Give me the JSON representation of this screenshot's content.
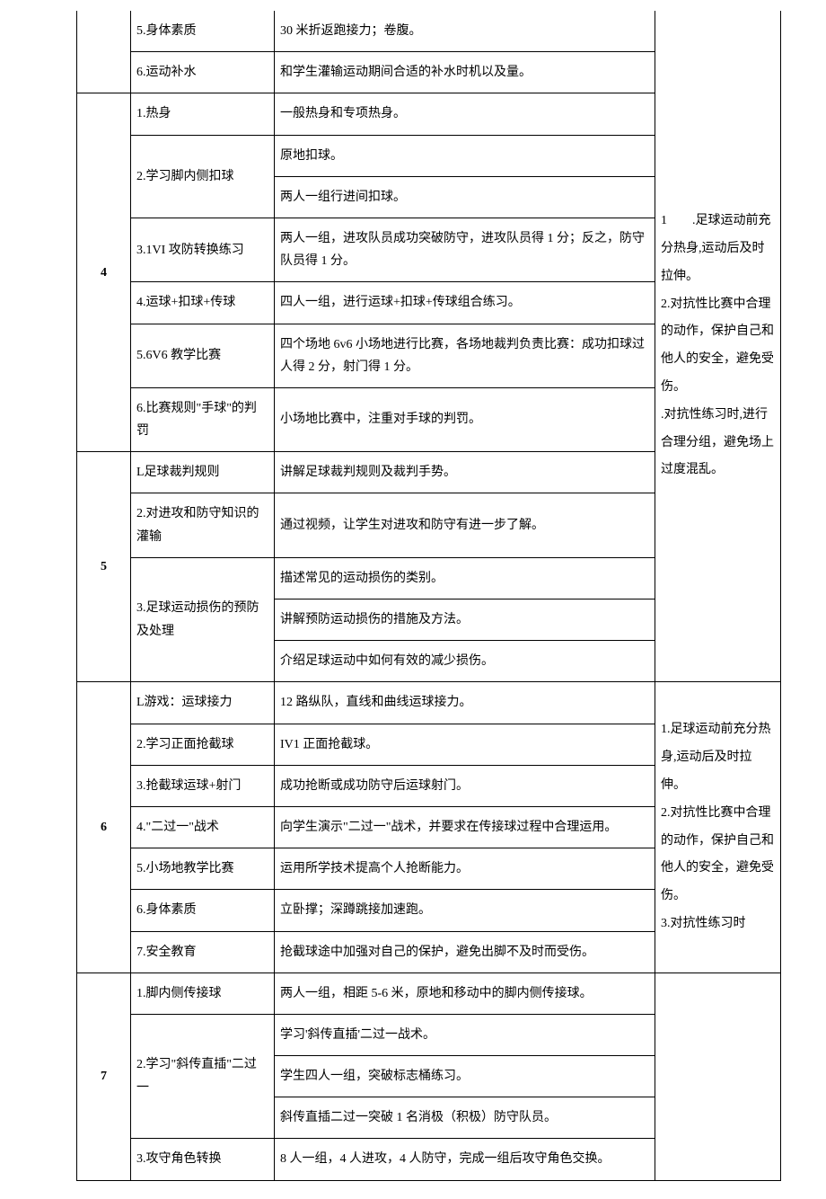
{
  "sections": [
    {
      "num": "",
      "rows": [
        {
          "topic": "5.身体素质",
          "desc": [
            "30 米折返跑接力；卷腹。"
          ]
        },
        {
          "topic": "6.运动补水",
          "desc": [
            "和学生灌输运动期间合适的补水时机以及量。"
          ]
        }
      ]
    },
    {
      "num": "4",
      "rows": [
        {
          "topic": "1.热身",
          "desc": [
            "一般热身和专项热身。"
          ]
        },
        {
          "topic": "2.学习脚内侧扣球",
          "desc": [
            "原地扣球。",
            "两人一组行进间扣球。"
          ]
        },
        {
          "topic": "3.1VI 攻防转换练习",
          "desc": [
            "两人一组，进攻队员成功突破防守，进攻队员得 1 分；反之，防守队员得 1 分。"
          ]
        },
        {
          "topic": "4.运球+扣球+传球",
          "desc": [
            "四人一组，进行运球+扣球+传球组合练习。"
          ]
        },
        {
          "topic": "5.6V6 教学比赛",
          "desc": [
            "四个场地 6v6 小场地进行比赛，各场地裁判负责比赛：成功扣球过人得 2 分，射门得 1 分。"
          ]
        },
        {
          "topic": "6.比赛规则\"手球\"的判罚",
          "desc": [
            "小场地比赛中，注重对手球的判罚。"
          ]
        }
      ]
    },
    {
      "num": "5",
      "rows": [
        {
          "topic": "L足球裁判规则",
          "desc": [
            "讲解足球裁判规则及裁判手势。"
          ]
        },
        {
          "topic": "2.对进攻和防守知识的灌输",
          "desc": [
            "通过视频，让学生对进攻和防守有进一步了解。"
          ]
        },
        {
          "topic": "3.足球运动损伤的预防及处理",
          "desc": [
            "描述常见的运动损伤的类别。",
            "讲解预防运动损伤的措施及方法。",
            "介绍足球运动中如何有效的减少损伤。"
          ]
        }
      ]
    },
    {
      "num": "6",
      "rows": [
        {
          "topic": "L游戏：运球接力",
          "desc": [
            "12 路纵队，直线和曲线运球接力。"
          ]
        },
        {
          "topic": "2.学习正面抢截球",
          "desc": [
            "IV1 正面抢截球。"
          ]
        },
        {
          "topic": "3.抢截球运球+射门",
          "desc": [
            "成功抢断或成功防守后运球射门。"
          ]
        },
        {
          "topic": "4.\"二过一\"战术",
          "desc": [
            "向学生演示\"二过一\"战术，并要求在传接球过程中合理运用。"
          ]
        },
        {
          "topic": "5.小场地教学比赛",
          "desc": [
            "运用所学技术提高个人抢断能力。"
          ]
        },
        {
          "topic": "6.身体素质",
          "desc": [
            "立卧撑；深蹲跳接加速跑。"
          ]
        },
        {
          "topic": "7.安全教育",
          "desc": [
            "抢截球途中加强对自己的保护，避免出脚不及时而受伤。"
          ]
        }
      ]
    },
    {
      "num": "7",
      "rows": [
        {
          "topic": "1.脚内侧传接球",
          "desc": [
            "两人一组，相距 5-6 米，原地和移动中的脚内侧传接球。"
          ]
        },
        {
          "topic": "2.学习\"斜传直插\"二过一",
          "desc": [
            "学习'斜传直插'二过一战术。",
            "学生四人一组，突破标志桶练习。",
            "斜传直插二过一突破 1 名消极（积极）防守队员。"
          ]
        },
        {
          "topic": "3.攻守角色转换",
          "desc": [
            "8 人一组，4 人进攻，4 人防守，完成一组后攻守角色交换。"
          ]
        }
      ]
    }
  ],
  "note_group1": "1　　.足球运动前充分热身,运动后及时拉伸。\n2.对抗性比赛中合理的动作，保护自己和他人的安全，避免受伤。\n.对抗性练习时,进行合理分组，避免场上过度混乱。",
  "note_group2": "1.足球运动前充分热身,运动后及时拉伸。\n2.对抗性比赛中合理的动作，保护自己和他人的安全，避免受伤。\n3.对抗性练习时"
}
